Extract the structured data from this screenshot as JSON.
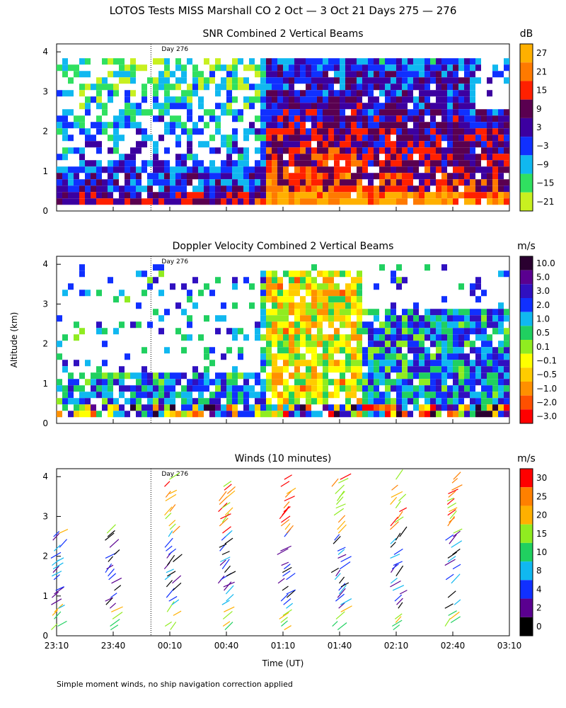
{
  "title": "LOTOS Tests MISS Marshall CO   2 Oct —  3 Oct 21 Days 275 — 276",
  "ylabel": "Altitude (km)",
  "xlabel": "Time (UT)",
  "footnote": "Simple moment winds, no ship navigation correction applied",
  "day_marker": "Day 276",
  "time_ticks": [
    "23:10",
    "23:40",
    "00:10",
    "00:40",
    "01:10",
    "01:40",
    "02:10",
    "02:40",
    "03:10"
  ],
  "alt_ticks": [
    "0",
    "1",
    "2",
    "3",
    "4"
  ],
  "chart_data": [
    {
      "type": "heatmap",
      "title": "SNR Combined 2 Vertical Beams",
      "ylim": [
        0,
        4
      ],
      "colorbar": {
        "unit": "dB",
        "labels": [
          "27",
          "21",
          "15",
          "9",
          "3",
          "−3",
          "−9",
          "−15",
          "−21"
        ],
        "colors": [
          "#ffb000",
          "#ff7a00",
          "#ff2000",
          "#5a0050",
          "#3c00a0",
          "#1030ff",
          "#10b8f0",
          "#30e060",
          "#c8f020"
        ]
      }
    },
    {
      "type": "heatmap",
      "title": "Doppler Velocity Combined 2 Vertical Beams",
      "ylim": [
        0,
        4
      ],
      "colorbar": {
        "unit": "m/s",
        "labels": [
          "10.0",
          "5.0",
          "3.0",
          "2.0",
          "1.0",
          "0.5",
          "0.1",
          "−0.1",
          "−0.5",
          "−1.0",
          "−2.0",
          "−3.0"
        ],
        "colors": [
          "#2a0030",
          "#5a0090",
          "#3010c0",
          "#1030ff",
          "#10b8f0",
          "#20d060",
          "#90ec20",
          "#ffff00",
          "#ffcc00",
          "#ff9000",
          "#ff5000",
          "#ff0000"
        ]
      }
    },
    {
      "type": "scatter",
      "title": "Winds (10 minutes)",
      "ylim": [
        0,
        4
      ],
      "colorbar": {
        "unit": "m/s",
        "labels": [
          "30",
          "25",
          "20",
          "15",
          "10",
          "8",
          "4",
          "2",
          "0"
        ],
        "colors": [
          "#ff0000",
          "#ff8000",
          "#ffb000",
          "#90ec20",
          "#20d060",
          "#10b8f0",
          "#1030ff",
          "#5a0090",
          "#000000"
        ]
      }
    }
  ]
}
